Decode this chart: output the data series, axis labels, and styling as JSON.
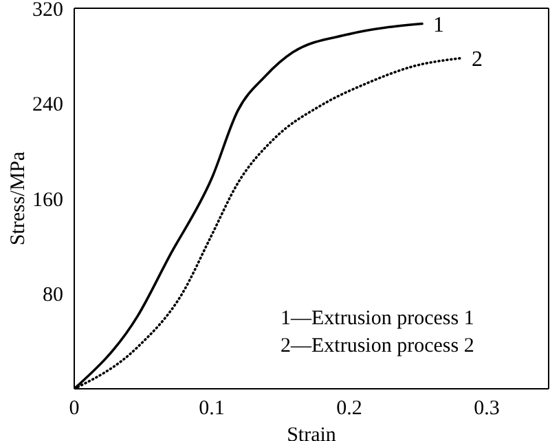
{
  "chart_data": {
    "type": "line",
    "xlabel": "Strain",
    "ylabel": "Stress/MPa",
    "xlim": [
      0,
      0.345
    ],
    "xticks": [
      0,
      0.1,
      0.2,
      0.3
    ],
    "ylim": [
      0,
      320
    ],
    "yticks": [
      {
        "value": 0,
        "label": null
      },
      80,
      160,
      240,
      320
    ],
    "marker": "none",
    "series": [
      {
        "color": "#000000",
        "line_style": "solid",
        "x": [
          0,
          0.046,
          0.069,
          0.1,
          0.119,
          0.139,
          0.159,
          0.199,
          0.253
        ],
        "values": [
          0,
          61,
          111,
          177,
          234,
          263,
          283,
          298,
          307
        ]
      },
      {
        "color": "#000000",
        "line_style": "dotted",
        "x": [
          0,
          0.046,
          0.079,
          0.099,
          0.119,
          0.146,
          0.179,
          0.213,
          0.246,
          0.281
        ],
        "values": [
          0,
          35,
          81,
          127,
          173,
          211,
          238,
          257,
          271,
          278
        ]
      }
    ],
    "annotations": [
      {
        "text": "1",
        "x": 0.253,
        "y": 307
      },
      {
        "text": "2",
        "x": 0.281,
        "y": 278
      },
      "1—Extrusion process 1",
      "2—Extrusion process 2"
    ]
  }
}
